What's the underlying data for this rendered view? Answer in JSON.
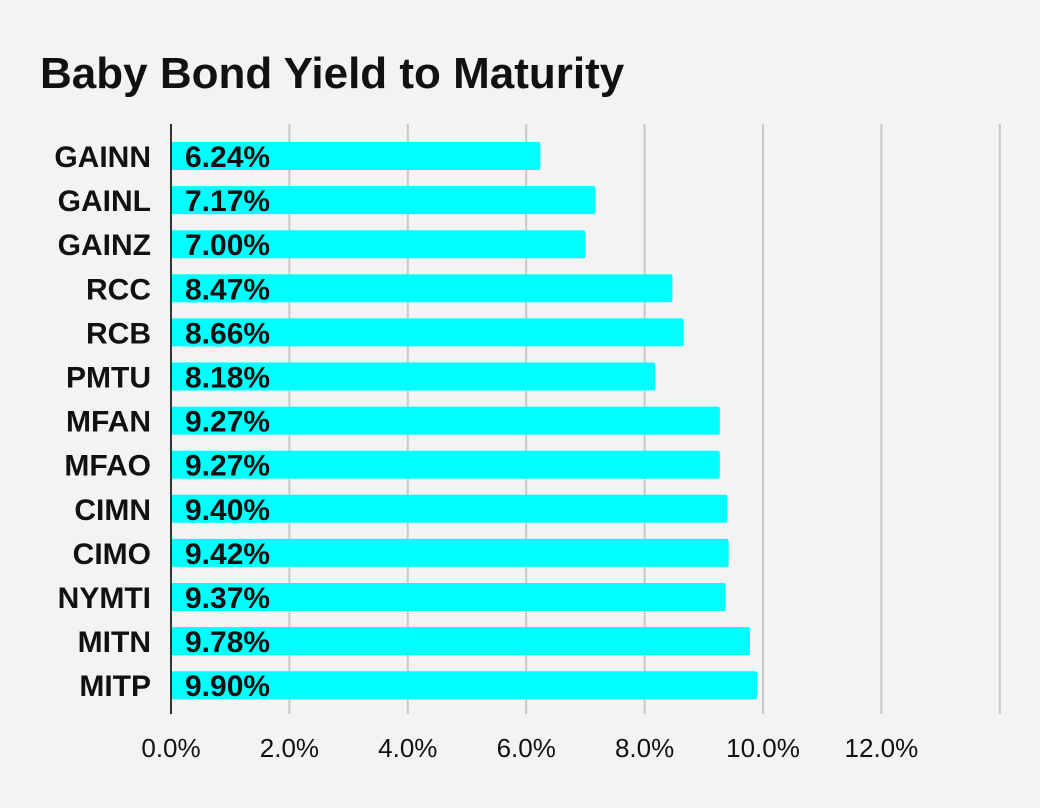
{
  "chart_data": {
    "type": "bar",
    "orientation": "horizontal",
    "title": "Baby Bond Yield to Maturity",
    "categories": [
      "GAINN",
      "GAINL",
      "GAINZ",
      "RCC",
      "RCB",
      "PMTU",
      "MFAN",
      "MFAO",
      "CIMN",
      "CIMO",
      "NYMTI",
      "MITN",
      "MITP"
    ],
    "values": [
      6.24,
      7.17,
      7.0,
      8.47,
      8.66,
      8.18,
      9.27,
      9.27,
      9.4,
      9.42,
      9.37,
      9.78,
      9.9
    ],
    "data_labels": [
      "6.24%",
      "7.17%",
      "7.00%",
      "8.47%",
      "8.66%",
      "8.18%",
      "9.27%",
      "9.27%",
      "9.40%",
      "9.42%",
      "9.37%",
      "9.78%",
      "9.90%"
    ],
    "xlim": [
      0,
      14
    ],
    "x_ticks": [
      0,
      2,
      4,
      6,
      8,
      10,
      12
    ],
    "x_tick_labels": [
      "0.0%",
      "2.0%",
      "4.0%",
      "6.0%",
      "8.0%",
      "10.0%",
      "12.0%"
    ],
    "xlabel": "",
    "ylabel": "",
    "grid": true,
    "legend": "none",
    "colors": {
      "bar": "#00ffff",
      "background": "#f3f3f3",
      "grid": "#c8c8c8",
      "text": "#111111"
    }
  }
}
